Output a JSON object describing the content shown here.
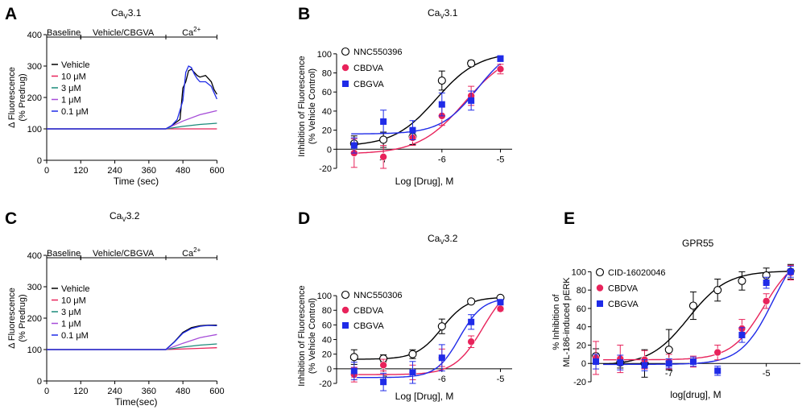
{
  "colors": {
    "black": "#000000",
    "pink": "#e8235b",
    "blue": "#1f2be8",
    "teal": "#1b8a7a",
    "purple": "#a64dd8",
    "violet": "#6a3bd1"
  },
  "chart_data": [
    {
      "panel": "A",
      "type": "line",
      "title": "CaV3.1",
      "title_main": "Ca",
      "title_sub": "V",
      "title_tail": "3.1",
      "xlabel": "Time (sec)",
      "ylabel": [
        "Δ Fluorescence",
        "(% Predrug)"
      ],
      "xlim": [
        0,
        630
      ],
      "ylim": [
        0,
        400
      ],
      "xticks": [
        0,
        120,
        240,
        360,
        480,
        600
      ],
      "yticks": [
        0,
        100,
        200,
        300,
        400
      ],
      "phases": [
        {
          "label": "Baseline",
          "start": 0,
          "end": 120
        },
        {
          "label": "Vehicle/CBGVA",
          "start": 120,
          "end": 420
        },
        {
          "label": "Ca",
          "sup": "2+",
          "start": 420,
          "end": 600
        }
      ],
      "legend": [
        "Vehicle",
        "10 μM",
        "3 μM",
        "1 μM",
        "0.1 μM"
      ],
      "series": [
        {
          "name": "Vehicle",
          "color": "#000000",
          "x": [
            0,
            420,
            440,
            470,
            480,
            490,
            500,
            510,
            520,
            530,
            540,
            560,
            580,
            590,
            600
          ],
          "y": [
            100,
            100,
            110,
            130,
            230,
            250,
            285,
            290,
            280,
            270,
            265,
            270,
            250,
            225,
            210
          ]
        },
        {
          "name": "10 μM",
          "color": "#e8235b",
          "x": [
            0,
            420,
            600
          ],
          "y": [
            100,
            100,
            100
          ]
        },
        {
          "name": "3 μM",
          "color": "#1b8a7a",
          "x": [
            0,
            420,
            480,
            540,
            600
          ],
          "y": [
            100,
            100,
            108,
            114,
            118
          ]
        },
        {
          "name": "1 μM",
          "color": "#a64dd8",
          "x": [
            0,
            420,
            480,
            540,
            600
          ],
          "y": [
            100,
            100,
            125,
            145,
            158
          ]
        },
        {
          "name": "0.1 μM",
          "color": "#1f2be8",
          "x": [
            0,
            420,
            440,
            460,
            480,
            490,
            500,
            510,
            520,
            530,
            540,
            560,
            580,
            590,
            600
          ],
          "y": [
            100,
            100,
            110,
            130,
            190,
            280,
            300,
            295,
            275,
            260,
            250,
            250,
            235,
            215,
            195
          ]
        }
      ]
    },
    {
      "panel": "B",
      "type": "scatter",
      "title": "CaV3.1",
      "title_main": "Ca",
      "title_sub": "V",
      "title_tail": "3.1",
      "xlabel": "Log [Drug], M",
      "ylabel": [
        "Inhibition of Fluorescence",
        "(% Vehicle Control)"
      ],
      "xlim": [
        -7.8,
        -4.8
      ],
      "ylim": [
        -20,
        110
      ],
      "xticks": [
        -7,
        -6,
        -5
      ],
      "yticks": [
        -20,
        0,
        20,
        40,
        60,
        80,
        100
      ],
      "series": [
        {
          "name": "NNC550396",
          "marker": "circle-open",
          "color": "#000000",
          "x": [
            -7.5,
            -7,
            -6.5,
            -6,
            -5.5
          ],
          "y": [
            6,
            10,
            13,
            72,
            90
          ],
          "err": [
            8,
            8,
            8,
            10,
            3
          ],
          "fit": {
            "bottom": 3,
            "top": 102,
            "logec50": -6.1,
            "hill": 1.2
          }
        },
        {
          "name": "CBDVA",
          "marker": "circle-filled",
          "color": "#e8235b",
          "x": [
            -7.5,
            -7,
            -6.5,
            -6,
            -5.5,
            -5
          ],
          "y": [
            -4,
            -8,
            12,
            35,
            56,
            84
          ],
          "err": [
            15,
            12,
            8,
            10,
            10,
            5
          ],
          "fit": {
            "bottom": -5,
            "top": 105,
            "logec50": -5.6,
            "hill": 1.1
          }
        },
        {
          "name": "CBGVA",
          "marker": "square-filled",
          "color": "#1f2be8",
          "x": [
            -7.5,
            -7,
            -6.5,
            -6,
            -5.5,
            -5
          ],
          "y": [
            4,
            29,
            20,
            47,
            51,
            95
          ],
          "err": [
            8,
            12,
            10,
            12,
            10,
            3
          ],
          "fit": {
            "bottom": 16,
            "top": 110,
            "logec50": -5.4,
            "hill": 1.4
          }
        }
      ]
    },
    {
      "panel": "C",
      "type": "line",
      "title": "CaV3.2",
      "title_main": "Ca",
      "title_sub": "V",
      "title_tail": "3.2",
      "xlabel": "Time(sec)",
      "ylabel": [
        "Δ Fluorescence",
        "(% Predrug)"
      ],
      "xlim": [
        0,
        630
      ],
      "ylim": [
        0,
        400
      ],
      "xticks": [
        0,
        120,
        240,
        360,
        480,
        600
      ],
      "yticks": [
        0,
        100,
        200,
        300,
        400
      ],
      "phases": [
        {
          "label": "Baseline",
          "start": 0,
          "end": 120
        },
        {
          "label": "Vehicle/CBGVA",
          "start": 120,
          "end": 420
        },
        {
          "label": "Ca",
          "sup": "2+",
          "start": 420,
          "end": 600
        }
      ],
      "legend": [
        "Vehicle",
        "10 μM",
        "3 μM",
        "1 μM",
        "0.1 μM"
      ],
      "series": [
        {
          "name": "Vehicle",
          "color": "#000000",
          "x": [
            0,
            420,
            450,
            480,
            510,
            540,
            570,
            600
          ],
          "y": [
            100,
            100,
            125,
            155,
            170,
            176,
            178,
            178
          ]
        },
        {
          "name": "10 μM",
          "color": "#e8235b",
          "x": [
            0,
            420,
            600
          ],
          "y": [
            100,
            100,
            106
          ]
        },
        {
          "name": "3 μM",
          "color": "#1b8a7a",
          "x": [
            0,
            420,
            480,
            540,
            600
          ],
          "y": [
            100,
            100,
            108,
            114,
            118
          ]
        },
        {
          "name": "1 μM",
          "color": "#a64dd8",
          "x": [
            0,
            420,
            480,
            540,
            600
          ],
          "y": [
            100,
            100,
            120,
            138,
            148
          ]
        },
        {
          "name": "0.1 μM",
          "color": "#1f2be8",
          "x": [
            0,
            420,
            450,
            480,
            510,
            540,
            570,
            600
          ],
          "y": [
            100,
            100,
            124,
            152,
            167,
            174,
            177,
            176
          ]
        }
      ]
    },
    {
      "panel": "D",
      "type": "scatter",
      "title": "CaV3.2",
      "title_main": "Ca",
      "title_sub": "V",
      "title_tail": "3.2",
      "xlabel": "Log [Drug], M",
      "ylabel": [
        "Inhibition of Fluorescence",
        "(% Vehicle Control)"
      ],
      "xlim": [
        -7.8,
        -4.8
      ],
      "ylim": [
        -20,
        110
      ],
      "xticks": [
        -7,
        -6,
        -5
      ],
      "yticks": [
        -20,
        0,
        20,
        40,
        60,
        80,
        100
      ],
      "series": [
        {
          "name": "NNC550306",
          "marker": "circle-open",
          "color": "#000000",
          "x": [
            -7.5,
            -7,
            -6.5,
            -6,
            -5.5,
            -5
          ],
          "y": [
            16,
            14,
            20,
            58,
            92,
            97
          ],
          "err": [
            10,
            5,
            6,
            10,
            2,
            2
          ],
          "fit": {
            "bottom": 13,
            "top": 98,
            "logec50": -6.0,
            "hill": 2.0
          }
        },
        {
          "name": "CBDVA",
          "marker": "circle-filled",
          "color": "#e8235b",
          "x": [
            -7.5,
            -7,
            -6.5,
            -6,
            -5.5,
            -5
          ],
          "y": [
            -8,
            5,
            -5,
            15,
            37,
            82
          ],
          "err": [
            10,
            8,
            10,
            12,
            8,
            3
          ],
          "fit": {
            "bottom": -8,
            "top": 120,
            "logec50": -5.3,
            "hill": 1.8
          }
        },
        {
          "name": "CBGVA",
          "marker": "square-filled",
          "color": "#1f2be8",
          "x": [
            -7.5,
            -7,
            -6.5,
            -6,
            -5.5,
            -5
          ],
          "y": [
            -3,
            -18,
            -5,
            15,
            64,
            91
          ],
          "err": [
            12,
            12,
            15,
            18,
            10,
            3
          ],
          "fit": {
            "bottom": -12,
            "top": 97,
            "logec50": -5.7,
            "hill": 2.2
          }
        }
      ]
    },
    {
      "panel": "E",
      "type": "scatter",
      "title": "GPR55",
      "xlabel": "log[drug], M",
      "ylabel": [
        "% Inhibition of",
        "ML-186-induced pERK"
      ],
      "xlim": [
        -8.6,
        -4.3
      ],
      "ylim": [
        -20,
        110
      ],
      "xticks": [
        -7,
        -5
      ],
      "yticks": [
        -20,
        0,
        20,
        40,
        60,
        80,
        100
      ],
      "series": [
        {
          "name": "CID-16020046",
          "marker": "circle-open",
          "color": "#000000",
          "x": [
            -8.5,
            -8,
            -7.5,
            -7,
            -6.5,
            -6,
            -5.5,
            -5,
            -4.5
          ],
          "y": [
            8,
            1,
            0,
            15,
            63,
            80,
            90,
            96,
            100
          ],
          "err": [
            8,
            6,
            15,
            22,
            15,
            12,
            10,
            8,
            8
          ],
          "fit": {
            "bottom": -2,
            "top": 101,
            "logec50": -6.6,
            "hill": 1.1
          }
        },
        {
          "name": "CBDVA",
          "marker": "circle-filled",
          "color": "#e8235b",
          "x": [
            -8.5,
            -8,
            -7.5,
            -7,
            -6.5,
            -6,
            -5.5,
            -5,
            -4.5
          ],
          "y": [
            6,
            5,
            4,
            2,
            2,
            12,
            38,
            68,
            99
          ],
          "err": [
            18,
            15,
            10,
            8,
            6,
            8,
            10,
            8,
            8
          ],
          "fit": {
            "bottom": 4,
            "top": 120,
            "logec50": -5.05,
            "hill": 1.3
          }
        },
        {
          "name": "CBGVA",
          "marker": "square-filled",
          "color": "#1f2be8",
          "x": [
            -8.5,
            -8,
            -7.5,
            -7,
            -6.5,
            -6,
            -5.5,
            -5,
            -4.5
          ],
          "y": [
            2,
            1,
            -2,
            0,
            2,
            -8,
            31,
            88,
            100
          ],
          "err": [
            8,
            8,
            6,
            5,
            5,
            5,
            8,
            6,
            6
          ],
          "fit": {
            "bottom": -1,
            "top": 140,
            "logec50": -4.85,
            "hill": 1.3
          }
        }
      ]
    }
  ]
}
